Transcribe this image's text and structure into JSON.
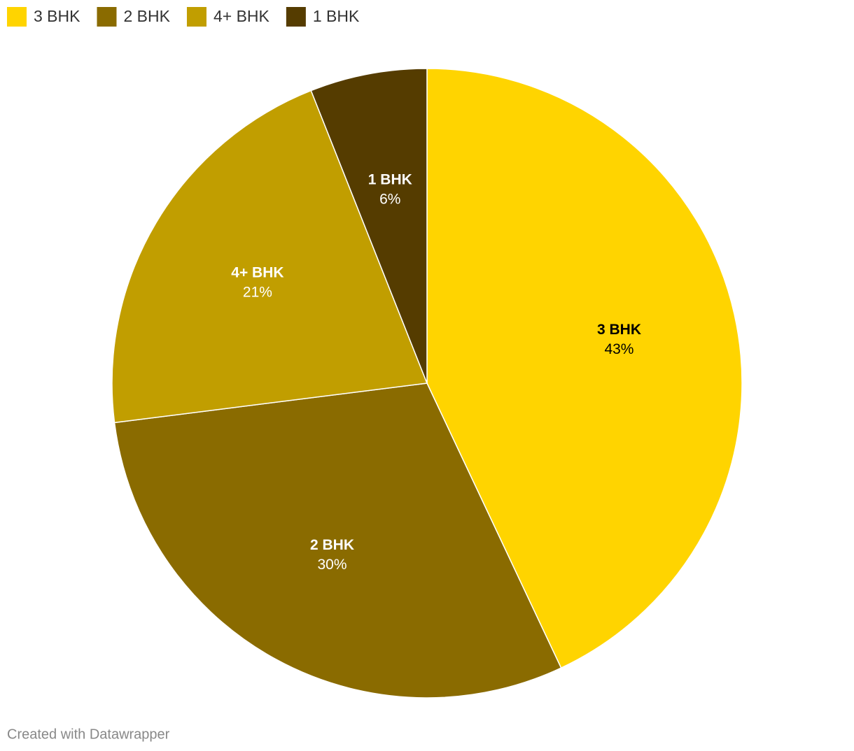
{
  "chart_data": {
    "type": "pie",
    "categories": [
      "3 BHK",
      "2 BHK",
      "4+ BHK",
      "1 BHK"
    ],
    "values": [
      43,
      30,
      21,
      6
    ],
    "value_labels": [
      "43%",
      "30%",
      "21%",
      "6%"
    ],
    "colors": [
      "#ffd400",
      "#8a6b00",
      "#c19e00",
      "#553c00"
    ],
    "legend": "top-left",
    "footer": "Created with Datawrapper"
  }
}
